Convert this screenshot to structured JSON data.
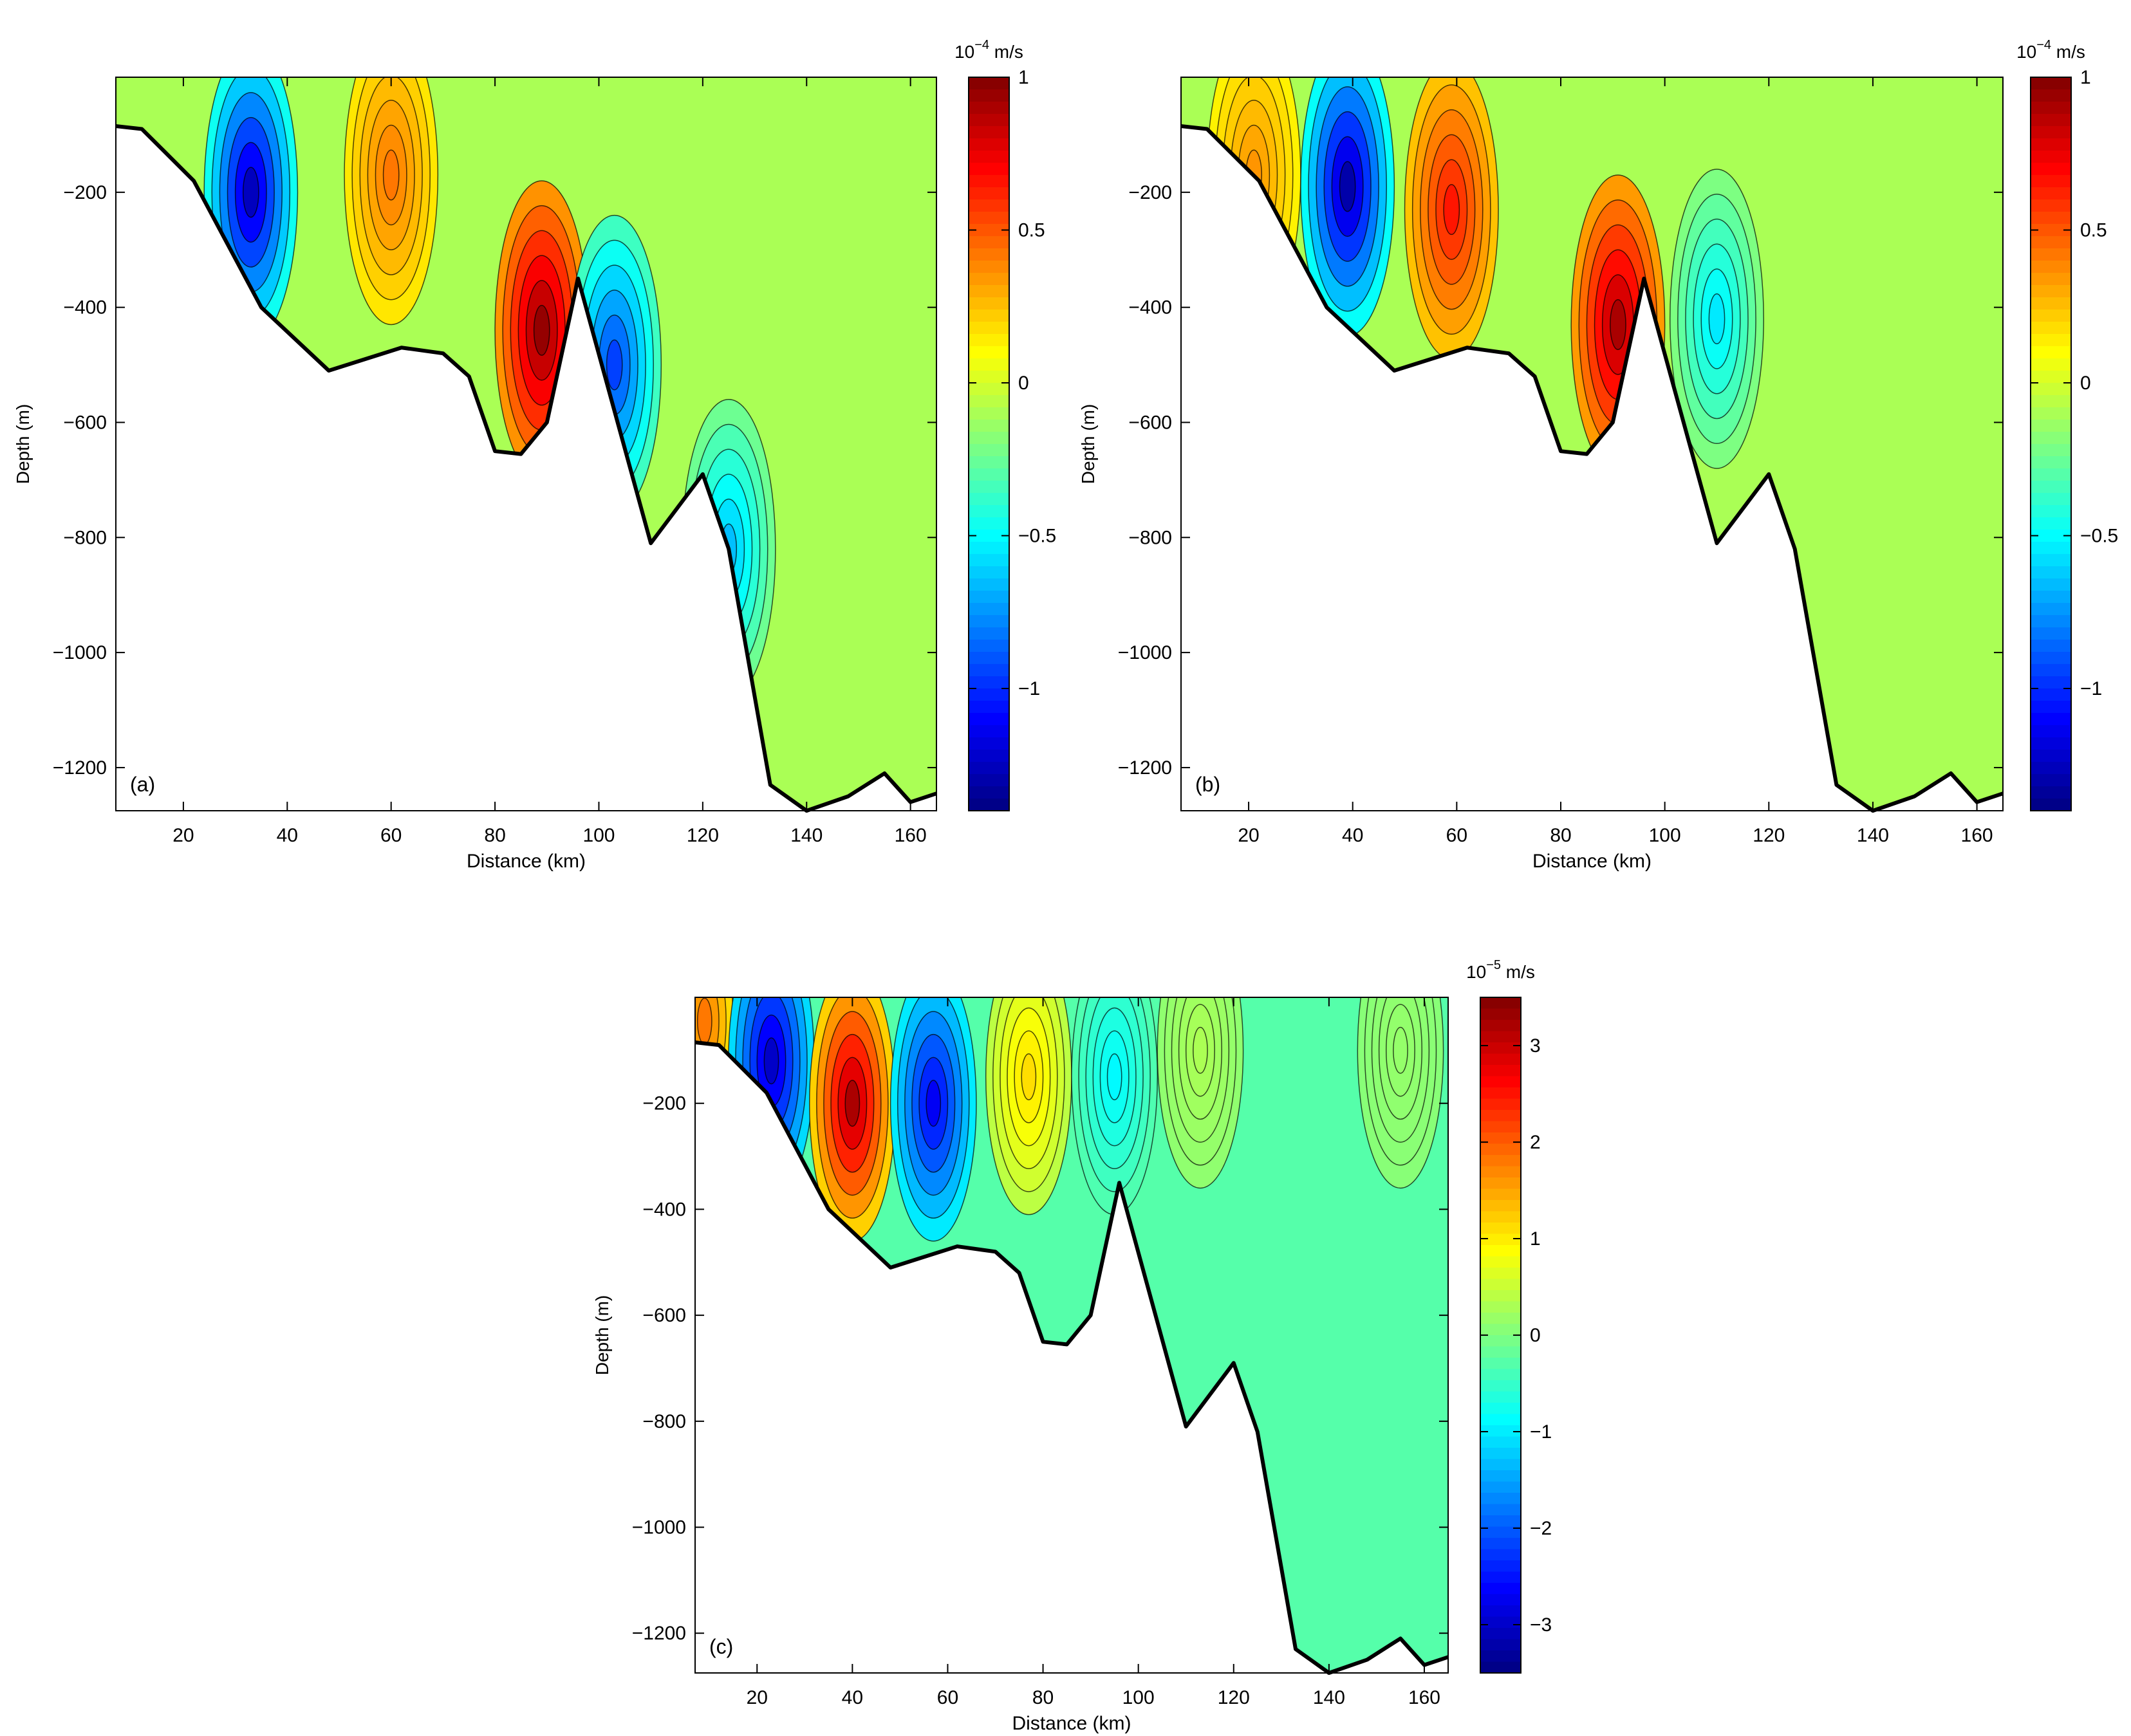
{
  "chart_data": [
    {
      "type": "contour",
      "panel_label": "(a)",
      "xlabel": "Distance (km)",
      "ylabel": "Depth (m)",
      "xlim": [
        7,
        165
      ],
      "ylim": [
        -1275,
        0
      ],
      "x_ticks": [
        20,
        40,
        60,
        80,
        100,
        120,
        140,
        160
      ],
      "y_ticks": [
        -200,
        -400,
        -600,
        -800,
        -1000,
        -1200
      ],
      "grid": false,
      "colorbar": {
        "unit_base": "10",
        "unit_exp": "−4",
        "unit_suffix": " m/s",
        "range": [
          -1.4,
          1.0
        ],
        "ticks": [
          1,
          0.5,
          0,
          -0.5,
          -1
        ],
        "colormap": "jet"
      },
      "bathymetry": {
        "distance_km": [
          7,
          12,
          22,
          35,
          48,
          55,
          62,
          70,
          75,
          80,
          85,
          90,
          96,
          110,
          120,
          125,
          133,
          140,
          148,
          155,
          160,
          165
        ],
        "depth_m": [
          -85,
          -90,
          -180,
          -400,
          -510,
          -490,
          -470,
          -480,
          -520,
          -650,
          -655,
          -600,
          -350,
          -810,
          -690,
          -820,
          -1230,
          -1275,
          -1250,
          -1210,
          -1260,
          -1245
        ]
      },
      "features": [
        {
          "kind": "minimum",
          "x_km": 33,
          "depth_m": -200,
          "value": -1.25
        },
        {
          "kind": "maximum",
          "x_km": 60,
          "depth_m": -170,
          "value": 0.42
        },
        {
          "kind": "maximum",
          "x_km": 89,
          "depth_m": -440,
          "value": 0.95
        },
        {
          "kind": "minimum",
          "x_km": 103,
          "depth_m": -500,
          "value": -0.95
        },
        {
          "kind": "minimum",
          "x_km": 125,
          "depth_m": -820,
          "value": -0.65
        }
      ]
    },
    {
      "type": "contour",
      "panel_label": "(b)",
      "xlabel": "Distance (km)",
      "ylabel": "Depth (m)",
      "xlim": [
        7,
        165
      ],
      "ylim": [
        -1275,
        0
      ],
      "x_ticks": [
        20,
        40,
        60,
        80,
        100,
        120,
        140,
        160
      ],
      "y_ticks": [
        -200,
        -400,
        -600,
        -800,
        -1000,
        -1200
      ],
      "grid": false,
      "colorbar": {
        "unit_base": "10",
        "unit_exp": "−4",
        "unit_suffix": " m/s",
        "range": [
          -1.4,
          1.0
        ],
        "ticks": [
          1,
          0.5,
          0,
          -0.5,
          -1
        ],
        "colormap": "jet"
      },
      "bathymetry": {
        "distance_km": [
          7,
          12,
          22,
          35,
          48,
          55,
          62,
          70,
          75,
          80,
          85,
          90,
          96,
          110,
          120,
          125,
          133,
          140,
          148,
          155,
          160,
          165
        ],
        "depth_m": [
          -85,
          -90,
          -180,
          -400,
          -510,
          -490,
          -470,
          -480,
          -520,
          -650,
          -655,
          -600,
          -350,
          -810,
          -690,
          -820,
          -1230,
          -1275,
          -1250,
          -1210,
          -1260,
          -1245
        ]
      },
      "features": [
        {
          "kind": "minimum",
          "x_km": 39,
          "depth_m": -190,
          "value": -1.3
        },
        {
          "kind": "maximum",
          "x_km": 59,
          "depth_m": -230,
          "value": 0.65
        },
        {
          "kind": "maximum",
          "x_km": 91,
          "depth_m": -430,
          "value": 0.9
        },
        {
          "kind": "maximum",
          "x_km": 21,
          "depth_m": -170,
          "value": 0.35
        },
        {
          "kind": "minimum",
          "x_km": 110,
          "depth_m": -420,
          "value": -0.55
        }
      ]
    },
    {
      "type": "contour",
      "panel_label": "(c)",
      "xlabel": "Distance (km)",
      "ylabel": "Depth (m)",
      "xlim": [
        7,
        165
      ],
      "ylim": [
        -1275,
        0
      ],
      "x_ticks": [
        20,
        40,
        60,
        80,
        100,
        120,
        140,
        160
      ],
      "y_ticks": [
        -200,
        -400,
        -600,
        -800,
        -1000,
        -1200
      ],
      "grid": false,
      "colorbar": {
        "unit_base": "10",
        "unit_exp": "−5",
        "unit_suffix": " m/s",
        "range": [
          -3.5,
          3.5
        ],
        "ticks": [
          3,
          2,
          1,
          0,
          -1,
          -2,
          -3
        ],
        "colormap": "jet"
      },
      "bathymetry": {
        "distance_km": [
          7,
          12,
          22,
          35,
          48,
          55,
          62,
          70,
          75,
          80,
          85,
          90,
          96,
          110,
          120,
          125,
          133,
          140,
          148,
          155,
          160,
          165
        ],
        "depth_m": [
          -85,
          -90,
          -180,
          -400,
          -510,
          -490,
          -470,
          -480,
          -520,
          -650,
          -655,
          -600,
          -350,
          -810,
          -690,
          -820,
          -1230,
          -1275,
          -1250,
          -1210,
          -1260,
          -1245
        ]
      },
      "features": [
        {
          "kind": "maximum",
          "x_km": 9,
          "depth_m": -45,
          "value": 1.8
        },
        {
          "kind": "minimum",
          "x_km": 23,
          "depth_m": -120,
          "value": -3.0
        },
        {
          "kind": "maximum",
          "x_km": 40,
          "depth_m": -200,
          "value": 3.2
        },
        {
          "kind": "minimum",
          "x_km": 57,
          "depth_m": -200,
          "value": -2.7
        },
        {
          "kind": "maximum",
          "x_km": 77,
          "depth_m": -150,
          "value": 1.1
        },
        {
          "kind": "minimum",
          "x_km": 95,
          "depth_m": -150,
          "value": -0.9
        },
        {
          "kind": "maximum",
          "x_km": 113,
          "depth_m": -100,
          "value": 0.3
        },
        {
          "kind": "maximum",
          "x_km": 155,
          "depth_m": -100,
          "value": 0.15
        }
      ]
    }
  ]
}
